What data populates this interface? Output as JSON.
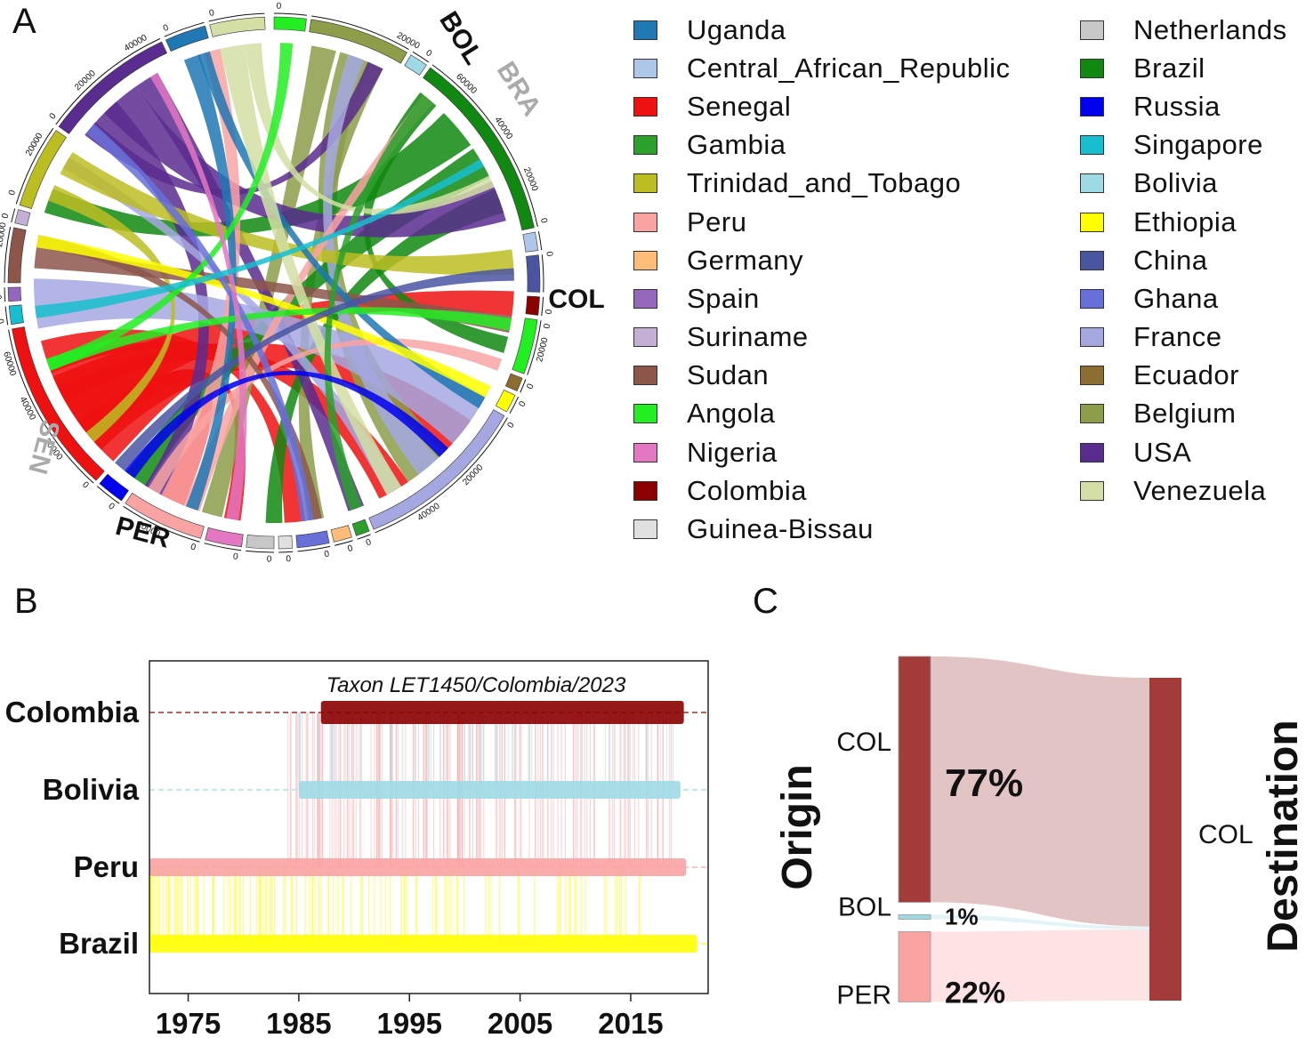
{
  "panels": {
    "a": {
      "letter": "A"
    },
    "b": {
      "letter": "B"
    },
    "c": {
      "letter": "C"
    }
  },
  "chart_data": [
    {
      "type": "chord",
      "panel": "A",
      "highlighted_sectors": [
        {
          "label": "BOL",
          "color": "#111111"
        },
        {
          "label": "BRA",
          "color": "#aaaaaa"
        },
        {
          "label": "COL",
          "color": "#111111"
        },
        {
          "label": "SEN",
          "color": "#aaaaaa"
        },
        {
          "label": "PER",
          "color": "#111111"
        }
      ],
      "legend": [
        {
          "name": "Uganda",
          "color": "#1f77b4"
        },
        {
          "name": "Central_African_Republic",
          "color": "#aec7e8"
        },
        {
          "name": "Senegal",
          "color": "#ee1111"
        },
        {
          "name": "Gambia",
          "color": "#2ca02c"
        },
        {
          "name": "Trinidad_and_Tobago",
          "color": "#bcbd22"
        },
        {
          "name": "Peru",
          "color": "#f9a3a3"
        },
        {
          "name": "Germany",
          "color": "#ffbb78"
        },
        {
          "name": "Spain",
          "color": "#9467bd"
        },
        {
          "name": "Suriname",
          "color": "#c5b0d5"
        },
        {
          "name": "Sudan",
          "color": "#8c564b"
        },
        {
          "name": "Angola",
          "color": "#22ee22"
        },
        {
          "name": "Nigeria",
          "color": "#e377c2"
        },
        {
          "name": "Colombia",
          "color": "#8b0000"
        },
        {
          "name": "Guinea-Bissau",
          "color": "#e0e0e0"
        },
        {
          "name": "Netherlands",
          "color": "#c7c7c7"
        },
        {
          "name": "Brazil",
          "color": "#118811"
        },
        {
          "name": "Russia",
          "color": "#0000ee"
        },
        {
          "name": "Singapore",
          "color": "#17becf"
        },
        {
          "name": "Bolivia",
          "color": "#9edae5"
        },
        {
          "name": "Ethiopia",
          "color": "#ffff00"
        },
        {
          "name": "China",
          "color": "#4a55a2"
        },
        {
          "name": "Ghana",
          "color": "#6670d8"
        },
        {
          "name": "France",
          "color": "#a5a8e0"
        },
        {
          "name": "Ecuador",
          "color": "#8c6d31"
        },
        {
          "name": "Belgium",
          "color": "#8c9e4a"
        },
        {
          "name": "USA",
          "color": "#5b2c8f"
        },
        {
          "name": "Venezuela",
          "color": "#d4dfa5"
        }
      ],
      "tick_labels": [
        "0",
        "20000",
        "40000",
        "60000"
      ]
    },
    {
      "type": "line",
      "panel": "B",
      "title": "Taxon LET1450/Colombia/2023",
      "x_ticks": [
        1975,
        1985,
        1995,
        2005,
        2015
      ],
      "xlim": [
        1971.5,
        2022
      ],
      "series": [
        {
          "name": "Colombia",
          "color": "#8b0000",
          "start": 1987,
          "end": 2019.8
        },
        {
          "name": "Bolivia",
          "color": "#9edae5",
          "start": 1985,
          "end": 2019.5
        },
        {
          "name": "Peru",
          "color": "#f9a3a3",
          "start": 1971.5,
          "end": 2020
        },
        {
          "name": "Brazil",
          "color": "#ffff00",
          "start": 1971.5,
          "end": 2021
        }
      ]
    },
    {
      "type": "sankey",
      "panel": "C",
      "axis_left": "Origin",
      "axis_right": "Destination",
      "origins": [
        {
          "name": "COL",
          "percent": 77,
          "label": "77%",
          "color": "#a33b3b"
        },
        {
          "name": "BOL",
          "percent": 1,
          "label": "1%",
          "color": "#9edae5"
        },
        {
          "name": "PER",
          "percent": 22,
          "label": "22%",
          "color": "#f9a3a3"
        }
      ],
      "destination": {
        "name": "COL",
        "color": "#a33b3b"
      }
    }
  ]
}
